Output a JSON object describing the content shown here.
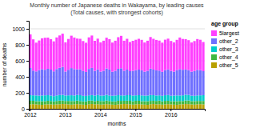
{
  "chart_data": {
    "type": "bar",
    "stacked": true,
    "title": "Monthly number of Japanese deaths in Wakayama, by leading causes",
    "subtitle": "(Total causes, with strongest cohorts)",
    "x_label": "months",
    "y_label": "number of deaths",
    "legend_title": "age group",
    "legend": "right",
    "grid": true,
    "ylim": [
      0,
      1100
    ],
    "yticks": [
      0,
      200,
      400,
      600,
      800,
      1000
    ],
    "categories": [
      "2012",
      null,
      null,
      null,
      null,
      null,
      null,
      null,
      null,
      null,
      null,
      null,
      "2013",
      null,
      null,
      null,
      null,
      null,
      null,
      null,
      null,
      null,
      null,
      null,
      "2014",
      null,
      null,
      null,
      null,
      null,
      null,
      null,
      null,
      null,
      null,
      null,
      "2015",
      null,
      null,
      null,
      null,
      null,
      null,
      null,
      null,
      null,
      null,
      null,
      "2016",
      null,
      null,
      null,
      null,
      null,
      null,
      null,
      null,
      null,
      null,
      null
    ],
    "series": [
      {
        "name": "other_5",
        "color": "#B8A000",
        "values": [
          55,
          58,
          55,
          52,
          50,
          54,
          56,
          55,
          52,
          55,
          57,
          60,
          58,
          55,
          52,
          56,
          58,
          55,
          52,
          50,
          57,
          60,
          55,
          57,
          52,
          55,
          58,
          55,
          52,
          50,
          55,
          57,
          60,
          58,
          55,
          52,
          56,
          58,
          55,
          52,
          50,
          57,
          60,
          55,
          57,
          52,
          55,
          58,
          55,
          52,
          50,
          55,
          57,
          60,
          58,
          55,
          52,
          56,
          58,
          55
        ]
      },
      {
        "name": "other_4",
        "color": "#40B840",
        "values": [
          45,
          42,
          40,
          43,
          45,
          41,
          44,
          42,
          40,
          43,
          45,
          42,
          40,
          43,
          45,
          41,
          44,
          42,
          40,
          43,
          45,
          42,
          40,
          43,
          45,
          41,
          44,
          42,
          40,
          43,
          45,
          42,
          40,
          43,
          45,
          41,
          44,
          42,
          40,
          43,
          45,
          42,
          40,
          43,
          45,
          41,
          44,
          42,
          40,
          43,
          45,
          42,
          40,
          43,
          45,
          41,
          44,
          42,
          40,
          43
        ]
      },
      {
        "name": "other_3",
        "color": "#00CCCC",
        "values": [
          70,
          68,
          72,
          69,
          71,
          73,
          70,
          68,
          66,
          69,
          70,
          72,
          68,
          70,
          72,
          69,
          71,
          73,
          70,
          68,
          66,
          69,
          70,
          72,
          68,
          70,
          72,
          69,
          71,
          73,
          70,
          68,
          66,
          69,
          70,
          72,
          68,
          70,
          72,
          69,
          71,
          73,
          70,
          68,
          66,
          69,
          70,
          72,
          68,
          70,
          72,
          69,
          71,
          73,
          70,
          68,
          66,
          69,
          70,
          72
        ]
      },
      {
        "name": "other_2",
        "color": "#7070FF",
        "values": [
          340,
          310,
          300,
          320,
          330,
          320,
          330,
          325,
          310,
          330,
          340,
          350,
          300,
          320,
          340,
          330,
          320,
          325,
          310,
          300,
          330,
          340,
          310,
          320,
          300,
          310,
          330,
          325,
          300,
          310,
          330,
          340,
          310,
          320,
          300,
          310,
          315,
          320,
          315,
          300,
          310,
          330,
          320,
          315,
          310,
          300,
          315,
          320,
          310,
          300,
          315,
          330,
          320,
          315,
          310,
          300,
          310,
          320,
          315,
          300
        ]
      },
      {
        "name": "5largest",
        "color": "#FF40FF",
        "values": [
          420,
          390,
          360,
          370,
          385,
          400,
          390,
          380,
          375,
          395,
          405,
          415,
          365,
          385,
          405,
          395,
          385,
          380,
          375,
          365,
          395,
          405,
          375,
          385,
          365,
          375,
          385,
          380,
          365,
          375,
          395,
          405,
          375,
          385,
          365,
          375,
          380,
          385,
          380,
          365,
          375,
          395,
          385,
          380,
          375,
          365,
          380,
          385,
          375,
          365,
          380,
          395,
          385,
          380,
          375,
          365,
          375,
          385,
          380,
          365
        ]
      }
    ]
  }
}
